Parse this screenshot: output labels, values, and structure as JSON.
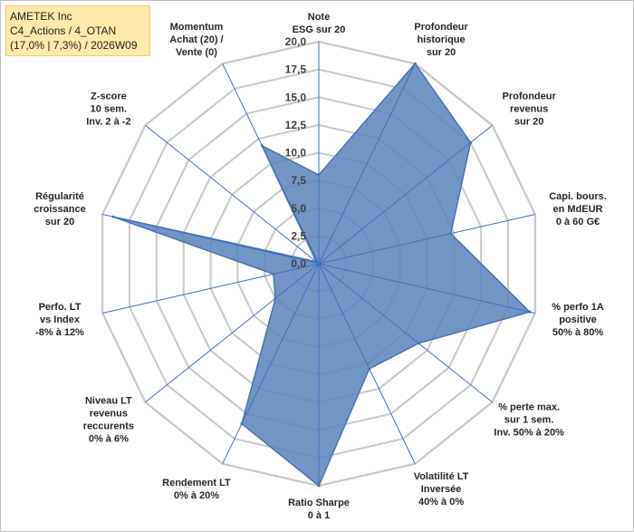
{
  "header": {
    "line1": "AMETEK Inc",
    "line2": "C4_Actions / 4_OTAN",
    "line3": "(17,0% | 7,3%) / 2026W09"
  },
  "chart_data": {
    "type": "radar",
    "title": "AMETEK Inc",
    "rlim": [
      0,
      20
    ],
    "ticks": [
      0,
      2.5,
      5,
      7.5,
      10,
      12.5,
      15,
      17.5,
      20
    ],
    "tick_labels": [
      "0,0",
      "2,5",
      "5,0",
      "7,5",
      "10,0",
      "12,5",
      "15,0",
      "17,5",
      "20,0"
    ],
    "grid": true,
    "categories": [
      [
        "Note",
        "ESG sur 20"
      ],
      [
        "Profondeur",
        "historique",
        "sur 20"
      ],
      [
        "Profondeur",
        "revenus",
        "sur 20"
      ],
      [
        "Capi. bours.",
        "en MdEUR",
        "0 à 60 G€"
      ],
      [
        "% perfo 1A",
        "positive",
        "50% à 80%"
      ],
      [
        "% perte max.",
        "sur 1 sem.",
        "Inv. 50% à 20%"
      ],
      [
        "Volatilité LT",
        "Inversée",
        "40% à 0%"
      ],
      [
        "Ratio Sharpe",
        "0 à 1"
      ],
      [
        "Rendement LT",
        "0% à 20%"
      ],
      [
        "Niveau LT",
        "revenus",
        "reccurents",
        "0% à 6%"
      ],
      [
        "Perfo. LT",
        "vs Index",
        "-8% à 12%"
      ],
      [
        "Régularité",
        "croissance",
        "sur 20"
      ],
      [
        "Z-score",
        "10 sem.",
        "Inv. 2 à -2"
      ],
      [
        "Momentum",
        "Achat (20) /",
        "Vente (0)"
      ]
    ],
    "series": [
      {
        "name": "AMETEK Inc",
        "values": [
          8,
          20,
          17.5,
          12.2,
          19.5,
          11.5,
          10.5,
          20,
          16,
          5,
          4.2,
          19,
          0.3,
          11.8
        ],
        "color": "#5b83bb",
        "fill_opacity": 0.85
      }
    ]
  }
}
